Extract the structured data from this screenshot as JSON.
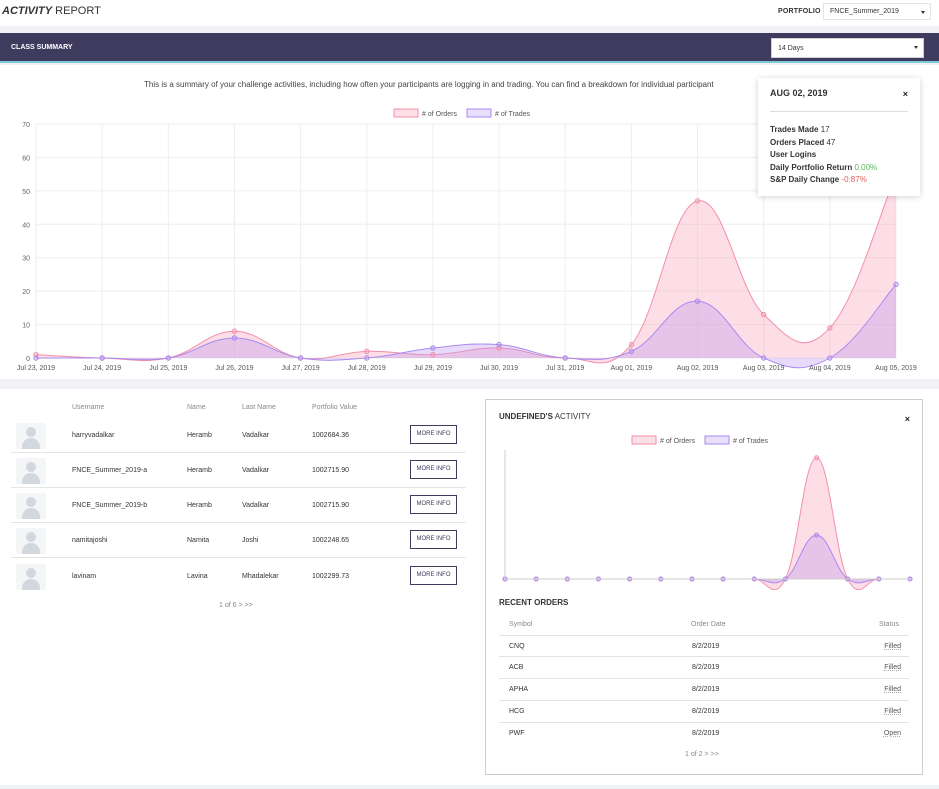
{
  "header": {
    "title_em": "ACTIVITY",
    "title_rest": " REPORT",
    "portfolio_label": "PORTFOLIO",
    "portfolio_value": "FNCE_Summer_2019"
  },
  "class_summary": {
    "title": "CLASS SUMMARY",
    "range_value": "14 Days",
    "description": "This is a summary of your challenge activities, including how often your participants are logging in and trading. You can find a breakdown for individual participant"
  },
  "chart_data": [
    {
      "type": "area",
      "x": [
        "Jul 23, 2019",
        "Jul 24, 2019",
        "Jul 25, 2019",
        "Jul 26, 2019",
        "Jul 27, 2019",
        "Jul 28, 2019",
        "Jul 29, 2019",
        "Jul 30, 2019",
        "Jul 31, 2019",
        "Aug 01, 2019",
        "Aug 02, 2019",
        "Aug 03, 2019",
        "Aug 04, 2019",
        "Aug 05, 2019"
      ],
      "series": [
        {
          "name": "# of Orders",
          "values": [
            1,
            0,
            0,
            8,
            0,
            2,
            1,
            3,
            0,
            4,
            47,
            13,
            9,
            55
          ],
          "color": "#f48fa8"
        },
        {
          "name": "# of Trades",
          "values": [
            0,
            0,
            0,
            6,
            0,
            0,
            3,
            4,
            0,
            2,
            17,
            0,
            0,
            22
          ],
          "color": "#a98af0"
        }
      ],
      "ylim": [
        0,
        70
      ],
      "yticks": [
        0,
        10,
        20,
        30,
        40,
        50,
        60,
        70
      ],
      "grid": true,
      "legend": "top-center"
    },
    {
      "type": "area",
      "series": [
        {
          "name": "# of Orders",
          "values": [
            0,
            0,
            0,
            0,
            0,
            0,
            0,
            0,
            0,
            0,
            47,
            0,
            0,
            0
          ]
        },
        {
          "name": "# of Trades",
          "values": [
            0,
            0,
            0,
            0,
            0,
            0,
            0,
            0,
            0,
            0,
            17,
            0,
            0,
            0
          ]
        }
      ],
      "ylim": [
        0,
        50
      ],
      "legend": "top-center"
    }
  ],
  "tooltip": {
    "date": "AUG 02, 2019",
    "close": "×",
    "trades_label": "Trades Made",
    "trades_value": "17",
    "orders_label": "Orders Placed",
    "orders_value": "47",
    "logins_label": "User Logins",
    "return_label": "Daily Portfolio Return",
    "return_value": "0.00%",
    "sp_label": "S&P Daily Change",
    "sp_value": "-0.87%"
  },
  "users": {
    "headers": {
      "username": "Username",
      "name": "Name",
      "last_name": "Last Name",
      "portfolio_value": "Portfolio Value"
    },
    "button_label": "MORE INFO",
    "rows": [
      {
        "username": "harryvadalkar",
        "name": "Heramb",
        "last_name": "Vadalkar",
        "value": "1002684.36"
      },
      {
        "username": "FNCE_Summer_2019-a",
        "name": "Heramb",
        "last_name": "Vadalkar",
        "value": "1002715.90"
      },
      {
        "username": "FNCE_Summer_2019-b",
        "name": "Heramb",
        "last_name": "Vadalkar",
        "value": "1002715.90"
      },
      {
        "username": "namitajoshi",
        "name": "Namita",
        "last_name": "Joshi",
        "value": "1002248.65"
      },
      {
        "username": "lavinam",
        "name": "Lavina",
        "last_name": "Mhadalekar",
        "value": "1002299.73"
      }
    ],
    "pager": "1 of 6 > >>"
  },
  "activity": {
    "title_bold": "UNDEFINED'S",
    "title_rest": " ACTIVITY",
    "close": "×",
    "recent_title": "RECENT ORDERS",
    "headers": {
      "symbol": "Symbol",
      "date": "Order Date",
      "status": "Status"
    },
    "orders": [
      {
        "symbol": "CNQ",
        "date": "8/2/2019",
        "status": "Filled"
      },
      {
        "symbol": "ACB",
        "date": "8/2/2019",
        "status": "Filled"
      },
      {
        "symbol": "APHA",
        "date": "8/2/2019",
        "status": "Filled"
      },
      {
        "symbol": "HCG",
        "date": "8/2/2019",
        "status": "Filled"
      },
      {
        "symbol": "PWF",
        "date": "8/2/2019",
        "status": "Open"
      }
    ],
    "pager": "1 of 2 > >>"
  }
}
